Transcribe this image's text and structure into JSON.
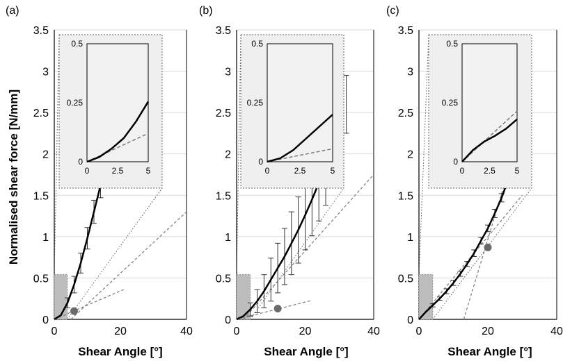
{
  "figure": {
    "ylabel": "Normalised shear force [N/mm]",
    "xlabel": "Shear Angle [°]",
    "colors": {
      "curve": "#000000",
      "errorbar": "#333333",
      "tangent": "#7a7a7a",
      "marker": "#6b6b6b",
      "inset_bg": "#efefef",
      "grid": "#d9d9d9"
    }
  },
  "chart_data": [
    {
      "type": "line",
      "panel": "(a)",
      "xlim": [
        0,
        40
      ],
      "ylim": [
        0,
        3.5
      ],
      "xticks": [
        "0",
        "20",
        "40"
      ],
      "yticks": [
        "0",
        "0.5",
        "1",
        "1.5",
        "2",
        "2.5",
        "3",
        "3.5"
      ],
      "xlabel": "Shear Angle [°]",
      "ylabel": "Normalised shear force [N/mm]",
      "grid": true,
      "series": [
        {
          "role": "mean",
          "x": [
            0,
            2,
            4,
            6,
            8,
            10,
            12,
            14,
            16
          ],
          "y": [
            0.0,
            0.05,
            0.2,
            0.42,
            0.68,
            0.98,
            1.3,
            1.62,
            1.95
          ]
        },
        {
          "role": "error",
          "x": [
            4,
            6,
            8,
            10,
            12,
            14,
            16
          ],
          "y": [
            0.2,
            0.42,
            0.68,
            0.98,
            1.3,
            1.62,
            1.95
          ],
          "err": [
            0.06,
            0.1,
            0.12,
            0.13,
            0.14,
            0.15,
            0.16
          ]
        },
        {
          "role": "tangent-initial",
          "x": [
            0,
            21
          ],
          "y": [
            0.0,
            0.36
          ]
        },
        {
          "role": "tangent-final",
          "x": [
            5,
            40
          ],
          "y": [
            0.0,
            1.3
          ]
        }
      ],
      "marker": {
        "x": 6,
        "y": 0.1
      },
      "inset": {
        "xlim": [
          0,
          5
        ],
        "ylim": [
          0,
          0.5
        ],
        "xticks": [
          "0",
          "2.5",
          "5"
        ],
        "yticks": [
          "0",
          "0.25",
          "0.5"
        ],
        "curve": {
          "x": [
            0,
            1,
            2,
            3,
            4,
            5
          ],
          "y": [
            0.0,
            0.02,
            0.055,
            0.1,
            0.17,
            0.255
          ]
        },
        "tangent": {
          "x": [
            0,
            5
          ],
          "y": [
            0.0,
            0.12
          ]
        }
      }
    },
    {
      "type": "line",
      "panel": "(b)",
      "xlim": [
        0,
        40
      ],
      "ylim": [
        0,
        3.5
      ],
      "xticks": [
        "0",
        "20",
        "40"
      ],
      "yticks": [
        "0",
        "0.5",
        "1",
        "1.5",
        "2",
        "2.5",
        "3",
        "3.5"
      ],
      "xlabel": "Shear Angle [°]",
      "ylabel": "",
      "grid": true,
      "series": [
        {
          "role": "mean",
          "x": [
            0,
            2,
            4,
            6,
            8,
            10,
            12,
            14,
            16,
            18,
            20,
            22,
            24,
            26
          ],
          "y": [
            0.0,
            0.04,
            0.12,
            0.22,
            0.34,
            0.48,
            0.62,
            0.76,
            0.92,
            1.08,
            1.26,
            1.45,
            1.65,
            1.86
          ]
        },
        {
          "role": "error",
          "x": [
            4,
            6,
            8,
            10,
            12,
            14,
            16,
            18,
            20,
            22,
            24,
            26,
            28,
            30,
            32
          ],
          "y": [
            0.12,
            0.22,
            0.34,
            0.48,
            0.62,
            0.76,
            0.92,
            1.08,
            1.26,
            1.45,
            1.65,
            1.86,
            2.1,
            2.35,
            2.6
          ],
          "err": [
            0.08,
            0.14,
            0.2,
            0.26,
            0.3,
            0.34,
            0.38,
            0.4,
            0.42,
            0.44,
            0.46,
            0.48,
            0.5,
            0.52,
            0.35
          ]
        },
        {
          "role": "tangent-initial",
          "x": [
            0,
            22
          ],
          "y": [
            0.0,
            0.23
          ]
        },
        {
          "role": "tangent-final",
          "x": [
            2,
            40
          ],
          "y": [
            0.0,
            1.75
          ]
        }
      ],
      "marker": {
        "x": 12,
        "y": 0.13
      },
      "inset": {
        "xlim": [
          0,
          5
        ],
        "ylim": [
          0,
          0.5
        ],
        "xticks": [
          "0",
          "2.5",
          "5"
        ],
        "yticks": [
          "0",
          "0.25",
          "0.5"
        ],
        "curve": {
          "x": [
            0,
            1,
            2,
            3,
            4,
            5
          ],
          "y": [
            0.0,
            0.015,
            0.05,
            0.1,
            0.15,
            0.2
          ]
        },
        "tangent": {
          "x": [
            0,
            5
          ],
          "y": [
            0.0,
            0.055
          ]
        }
      }
    },
    {
      "type": "line",
      "panel": "(c)",
      "xlim": [
        0,
        40
      ],
      "ylim": [
        0,
        3.5
      ],
      "xticks": [
        "0",
        "20",
        "40"
      ],
      "yticks": [
        "0",
        "0.5",
        "1",
        "1.5",
        "2",
        "2.5",
        "3",
        "3.5"
      ],
      "xlabel": "Shear Angle [°]",
      "ylabel": "",
      "grid": true,
      "series": [
        {
          "role": "mean",
          "x": [
            0,
            2,
            4,
            6,
            8,
            10,
            12,
            14,
            16,
            18,
            20,
            22,
            24,
            26
          ],
          "y": [
            0.0,
            0.09,
            0.17,
            0.25,
            0.34,
            0.44,
            0.55,
            0.67,
            0.8,
            0.95,
            1.1,
            1.28,
            1.47,
            1.7
          ]
        },
        {
          "role": "error",
          "x": [
            4,
            6,
            8,
            10,
            12,
            14,
            16,
            18,
            20,
            22,
            24,
            26,
            28,
            30,
            32
          ],
          "y": [
            0.17,
            0.25,
            0.34,
            0.44,
            0.55,
            0.67,
            0.8,
            0.95,
            1.1,
            1.28,
            1.47,
            1.7,
            1.95,
            2.25,
            2.55
          ],
          "err": [
            0.02,
            0.02,
            0.03,
            0.03,
            0.03,
            0.03,
            0.04,
            0.04,
            0.04,
            0.05,
            0.05,
            0.05,
            0.06,
            0.07,
            0.12
          ]
        },
        {
          "role": "tangent-initial",
          "x": [
            0,
            30
          ],
          "y": [
            0.0,
            1.5
          ]
        },
        {
          "role": "tangent-final",
          "x": [
            13,
            30
          ],
          "y": [
            0.0,
            2.35
          ]
        }
      ],
      "marker": {
        "x": 20,
        "y": 0.87
      },
      "inset": {
        "xlim": [
          0,
          5
        ],
        "ylim": [
          0,
          0.5
        ],
        "xticks": [
          "0",
          "2.5",
          "5"
        ],
        "yticks": [
          "0",
          "0.25",
          "0.5"
        ],
        "curve": {
          "x": [
            0,
            1,
            2,
            3,
            4,
            5
          ],
          "y": [
            0.0,
            0.05,
            0.085,
            0.11,
            0.14,
            0.18
          ]
        },
        "tangent": {
          "x": [
            0,
            5
          ],
          "y": [
            0.0,
            0.215
          ]
        }
      }
    }
  ]
}
